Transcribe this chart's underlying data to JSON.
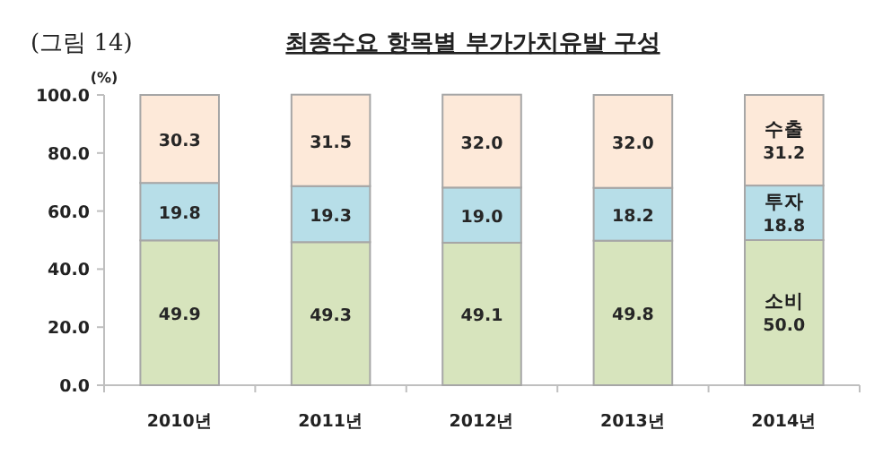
{
  "chart_data": {
    "type": "bar",
    "title": "최종수요 항목별 부가가치유발 구성",
    "annotations": [
      "(그림 14)"
    ],
    "ylabel": "(%)",
    "categories": [
      "2010년",
      "2011년",
      "2012년",
      "2013년",
      "2014년"
    ],
    "stacked": true,
    "legend": false,
    "grid": false,
    "ylim": [
      0,
      100
    ],
    "yticks": [
      {
        "value": 0,
        "label": "0.0"
      },
      {
        "value": 20,
        "label": "20.0"
      },
      {
        "value": 40,
        "label": "40.0"
      },
      {
        "value": 60,
        "label": "60.0"
      },
      {
        "value": 80,
        "label": "80.0"
      },
      {
        "value": 100,
        "label": "100.0"
      }
    ],
    "series": [
      {
        "name": "소비",
        "color": "#d7e4bd",
        "values": [
          49.9,
          49.3,
          49.1,
          49.8,
          50.0
        ],
        "value_labels": [
          "49.9",
          "49.3",
          "49.1",
          "49.8",
          "50.0"
        ]
      },
      {
        "name": "투자",
        "color": "#b7dee8",
        "values": [
          19.8,
          19.3,
          19.0,
          18.2,
          18.8
        ],
        "value_labels": [
          "19.8",
          "19.3",
          "19.0",
          "18.2",
          "18.8"
        ]
      },
      {
        "name": "수출",
        "color": "#fde9d9",
        "values": [
          30.3,
          31.5,
          32.0,
          32.0,
          31.2
        ],
        "value_labels": [
          "30.3",
          "31.5",
          "32.0",
          "32.0",
          "31.2"
        ]
      }
    ]
  }
}
